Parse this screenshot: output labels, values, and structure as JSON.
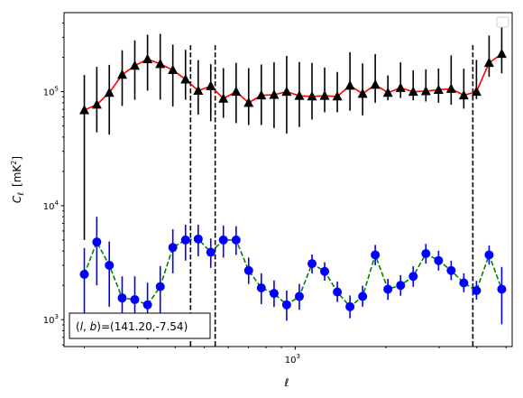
{
  "chart_data": {
    "type": "scatter",
    "xscale": "log",
    "yscale": "log",
    "xlim": [
      171.3,
      5238
    ],
    "ylim": [
      581,
      493700
    ],
    "xlabel": "ℓ",
    "ylabel": "C_ℓ  [mK²]",
    "ylabel_parts": {
      "sym": "C",
      "sub": "ℓ",
      "unit": "[mK",
      "sup": "2",
      "close": "]"
    },
    "x_ticks_major": [
      {
        "value": 1000,
        "base": "10",
        "exp": "3"
      }
    ],
    "y_ticks_major": [
      {
        "value": 1000,
        "base": "10",
        "exp": "3"
      },
      {
        "value": 10000,
        "base": "10",
        "exp": "4"
      },
      {
        "value": 100000,
        "base": "10",
        "exp": "5"
      }
    ],
    "grid": false,
    "legend": {
      "placement": "upper right",
      "entries": []
    },
    "annotation": "(l, b)=(141.20,-7.54)",
    "annotation_parts": {
      "open": "(",
      "l": "l",
      "comma": ", ",
      "b": "b",
      "rest": ")=(141.20,-7.54)"
    },
    "vlines": [
      450,
      543,
      3880
    ],
    "colors": {
      "upper_line": "#ff0000",
      "upper_marker": "#000000",
      "lower_line": "#008000",
      "lower_marker": "#0000ff",
      "vline": "#000000"
    },
    "series": [
      {
        "marker": "triangle",
        "line": "solid",
        "x": [
          200,
          220,
          242,
          267,
          294,
          324,
          357,
          393,
          433,
          477,
          525,
          578,
          637,
          701,
          772,
          851,
          937,
          1032,
          1137,
          1252,
          1379,
          1519,
          1673,
          1842,
          2029,
          2235,
          2461,
          2711,
          2986,
          3288,
          3621,
          3988,
          4392,
          4837
        ],
        "y": [
          69000,
          77000,
          98000,
          141000,
          169000,
          193000,
          175000,
          155000,
          128000,
          102000,
          112000,
          87000,
          100000,
          80000,
          93000,
          94000,
          100000,
          92000,
          91000,
          92000,
          91000,
          113000,
          96000,
          115000,
          98000,
          108000,
          100000,
          101000,
          104000,
          106000,
          93000,
          100000,
          179000,
          215000
        ],
        "y_err_low": [
          64000,
          33000,
          56000,
          66000,
          84000,
          91000,
          90000,
          81000,
          43000,
          39000,
          57000,
          28000,
          47000,
          29000,
          42000,
          46000,
          57000,
          43000,
          34000,
          26000,
          25000,
          45000,
          34000,
          35000,
          14000,
          20000,
          16000,
          19000,
          24000,
          29000,
          22000,
          14000,
          44000,
          70000
        ],
        "y_err_high": [
          71000,
          88000,
          74000,
          90000,
          113000,
          123000,
          147000,
          104000,
          105000,
          87000,
          62000,
          74000,
          79000,
          81000,
          80000,
          87000,
          106000,
          90000,
          88000,
          71000,
          58000,
          109000,
          81000,
          99000,
          41000,
          73000,
          54000,
          56000,
          56000,
          102000,
          66000,
          90000,
          132000,
          155000
        ]
      },
      {
        "marker": "circle",
        "line": "dashed",
        "x": [
          200,
          220,
          242,
          267,
          294,
          324,
          357,
          393,
          433,
          477,
          525,
          578,
          637,
          701,
          772,
          851,
          937,
          1032,
          1137,
          1252,
          1379,
          1519,
          1673,
          1842,
          2029,
          2235,
          2461,
          2711,
          2986,
          3288,
          3621,
          3988,
          4392,
          4837
        ],
        "y": [
          2500,
          4800,
          3000,
          1550,
          1500,
          1350,
          1950,
          4300,
          5000,
          5100,
          3900,
          5000,
          5000,
          2700,
          1900,
          1700,
          1350,
          1600,
          3100,
          2650,
          1750,
          1300,
          1600,
          3700,
          1850,
          2000,
          2400,
          3800,
          3300,
          2700,
          2100,
          1800,
          3700,
          1850
        ],
        "y_err_low": [
          1600,
          2800,
          1700,
          750,
          780,
          680,
          830,
          1750,
          1700,
          1500,
          1050,
          1500,
          1300,
          640,
          530,
          410,
          370,
          380,
          560,
          450,
          320,
          270,
          300,
          700,
          360,
          380,
          460,
          700,
          600,
          480,
          360,
          300,
          660,
          940
        ],
        "y_err_high": [
          1750,
          3200,
          1850,
          850,
          900,
          760,
          1000,
          1900,
          1800,
          1700,
          1250,
          1700,
          1600,
          800,
          650,
          510,
          450,
          460,
          630,
          540,
          410,
          330,
          380,
          830,
          430,
          460,
          540,
          820,
          720,
          590,
          450,
          390,
          780,
          1050
        ]
      }
    ]
  }
}
